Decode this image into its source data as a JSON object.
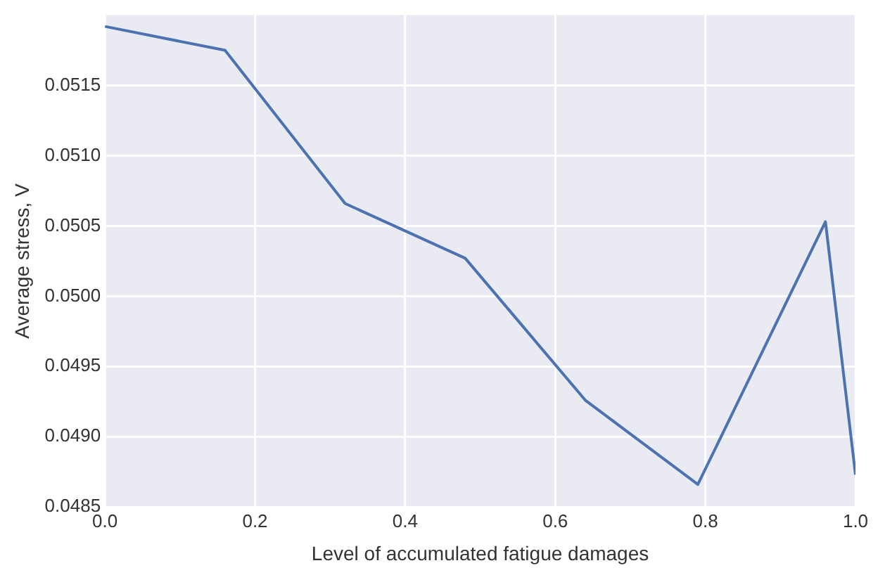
{
  "chart_data": {
    "type": "line",
    "xlabel": "Level of accumulated fatigue damages",
    "ylabel": "Average stress, V",
    "series": [
      {
        "color": "#4c72b0",
        "x": [
          0,
          0.16,
          0.32,
          0.48,
          0.64,
          0.79,
          0.96,
          1.0
        ],
        "values": [
          0.05192,
          0.05175,
          0.05066,
          0.05027,
          0.04926,
          0.04866,
          0.05053,
          0.04873
        ]
      }
    ],
    "xlim": [
      0,
      1
    ],
    "xticks": [
      {
        "value": 0,
        "label": "0.0"
      },
      0.2,
      0.4,
      0.6,
      0.8,
      {
        "value": 1,
        "label": "1.0"
      }
    ],
    "ylim": [
      0.0485,
      0.052
    ],
    "yticks": [
      {
        "value": 0.0485,
        "label": "0.0485"
      },
      {
        "value": 0.049,
        "label": "0.0490"
      },
      {
        "value": 0.0495,
        "label": "0.0495"
      },
      {
        "value": 0.05,
        "label": "0.0500"
      },
      {
        "value": 0.0505,
        "label": "0.0505"
      },
      {
        "value": 0.051,
        "label": "0.0510"
      },
      {
        "value": 0.0515,
        "label": "0.0515"
      }
    ],
    "grid": true,
    "marker": "none",
    "line_style": "solid"
  }
}
